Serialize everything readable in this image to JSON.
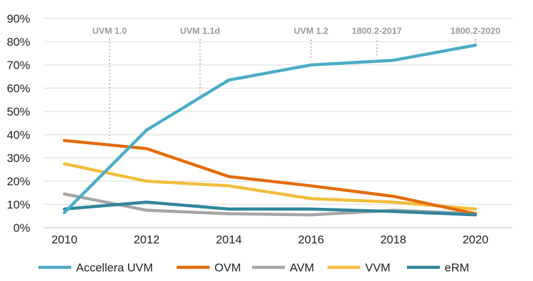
{
  "chart_data": {
    "type": "line",
    "x": [
      2010,
      2011,
      2012,
      2013,
      2014,
      2015,
      2016,
      2017,
      2018,
      2019,
      2020
    ],
    "xticks": [
      "2010",
      "2012",
      "2014",
      "2016",
      "2018",
      "2020"
    ],
    "yticks": [
      "0%",
      "10%",
      "20%",
      "30%",
      "40%",
      "50%",
      "60%",
      "70%",
      "80%",
      "90%"
    ],
    "ylim": [
      0,
      90
    ],
    "xlim": [
      2009.5,
      2020.9
    ],
    "grid": true,
    "legend_position": "bottom",
    "series": [
      {
        "name": "Accellera UVM",
        "color": "#4bacc6",
        "x": [
          2010,
          2012,
          2014,
          2016,
          2018,
          2020
        ],
        "values": [
          6.5,
          42,
          63.5,
          70,
          72,
          78.5
        ]
      },
      {
        "name": "OVM",
        "color": "#e46c0a",
        "x": [
          2010,
          2012,
          2014,
          2016,
          2018,
          2020
        ],
        "values": [
          37.5,
          34,
          22,
          18,
          13.5,
          6
        ]
      },
      {
        "name": "AVM",
        "color": "#a6a6a6",
        "x": [
          2010,
          2012,
          2014,
          2016,
          2018,
          2020
        ],
        "values": [
          14.5,
          7.5,
          6,
          5.5,
          7.5,
          6
        ]
      },
      {
        "name": "VVM",
        "color": "#f4bd3c",
        "x": [
          2010,
          2012,
          2014,
          2016,
          2018,
          2020
        ],
        "values": [
          27.5,
          20,
          18,
          12.5,
          11,
          8
        ]
      },
      {
        "name": "eRM",
        "color": "#31859c",
        "x": [
          2010,
          2012,
          2014,
          2016,
          2018,
          2020
        ],
        "values": [
          8,
          11,
          8,
          8,
          7,
          5.5
        ]
      }
    ],
    "annotations": [
      {
        "label": "UVM 1.0",
        "x": 2011.1,
        "y_start": 38,
        "y_end": 84
      },
      {
        "label": "UVM 1.1d",
        "x": 2013.3,
        "y_start": 57,
        "y_end": 84
      },
      {
        "label": "UVM 1.2",
        "x": 2016.0,
        "y_start": 73,
        "y_end": 84
      },
      {
        "label": "1800.2-2017",
        "x": 2017.6,
        "y_start": 74,
        "y_end": 84
      },
      {
        "label": "1800.2-2020",
        "x": 2020.0,
        "y_start": 79,
        "y_end": 84
      }
    ]
  }
}
